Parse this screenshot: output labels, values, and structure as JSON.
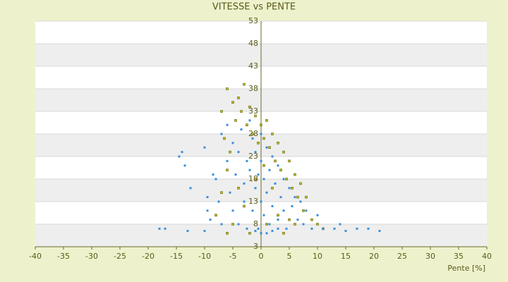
{
  "chart_data": {
    "type": "scatter",
    "title": "VITESSE vs PENTE",
    "x_label": "Pente [%]",
    "xlim": [
      -40,
      40
    ],
    "xticks": [
      -40,
      -35,
      -30,
      -25,
      -20,
      -15,
      -10,
      -5,
      0,
      5,
      10,
      15,
      20,
      25,
      30,
      35,
      40
    ],
    "ylim": [
      3,
      53
    ],
    "yticks": [
      3,
      8,
      13,
      18,
      23,
      28,
      33,
      38,
      43,
      48,
      53
    ],
    "grid": true,
    "series": [
      {
        "color": "#3a8fd8",
        "x": [
          -18,
          -17,
          -13,
          -14.5,
          -14,
          -13.5,
          -12.5,
          -10,
          -10,
          -9.5,
          -9.5,
          -9,
          -8.5,
          -8,
          -7.5,
          -7,
          -7,
          -6,
          -6,
          -5.5,
          -5,
          -5,
          -4.5,
          -4,
          -4,
          -3.5,
          -3,
          -3,
          -2.5,
          -2.5,
          -2,
          -2,
          -1.5,
          -1.5,
          -1,
          -1,
          -0.5,
          -0.5,
          0,
          0,
          0,
          0.5,
          0.5,
          1,
          1,
          1.5,
          1.5,
          2,
          2,
          2.5,
          3,
          3,
          3.5,
          4,
          4,
          4.5,
          5,
          5.5,
          6,
          6.5,
          7,
          7.5,
          8,
          9,
          10,
          11,
          13,
          14,
          15,
          17,
          19,
          21,
          0,
          1,
          2,
          -1,
          3
        ],
        "y": [
          7,
          7,
          6.5,
          23,
          24,
          21,
          16,
          25,
          6.5,
          14,
          11,
          9,
          19,
          18,
          13,
          28,
          8,
          22,
          30,
          15,
          26,
          11,
          19,
          24,
          8,
          29,
          17,
          13,
          22,
          7,
          31,
          20,
          27,
          11,
          24,
          16,
          19,
          7,
          22,
          13,
          28,
          18,
          10,
          25,
          15,
          20,
          8,
          23,
          12,
          17,
          21,
          9,
          14,
          18,
          11,
          7,
          16,
          12,
          14,
          9,
          13,
          8,
          11,
          7,
          10,
          7,
          7,
          8,
          6.5,
          7,
          7,
          6.5,
          6,
          6,
          6.5,
          6.5,
          7
        ]
      },
      {
        "color": "#b8b820",
        "x": [
          -6,
          -5,
          -4.5,
          -7,
          -6.5,
          -5.5,
          -4,
          -3.5,
          -3,
          -2.5,
          -2,
          -1.5,
          -1,
          -0.5,
          0,
          0.5,
          1,
          1.5,
          2,
          2.5,
          3,
          3.5,
          4,
          4.5,
          5,
          5.5,
          6,
          6.5,
          7,
          7.5,
          8,
          9,
          10,
          11,
          -8,
          -7,
          -6,
          -5,
          -3,
          -2,
          1,
          3,
          5,
          2,
          -1,
          0.5,
          -4,
          6,
          4,
          -6
        ],
        "y": [
          38,
          35,
          31,
          33,
          27,
          24,
          36,
          33,
          39,
          30,
          34,
          28,
          32,
          26,
          30,
          27,
          31,
          25,
          28,
          22,
          26,
          20,
          24,
          18,
          22,
          16,
          19,
          14,
          17,
          11,
          14,
          9,
          8,
          7,
          10,
          15,
          20,
          8,
          12,
          6,
          8,
          10,
          9,
          16,
          18,
          21,
          16,
          8,
          6,
          6
        ]
      }
    ]
  }
}
